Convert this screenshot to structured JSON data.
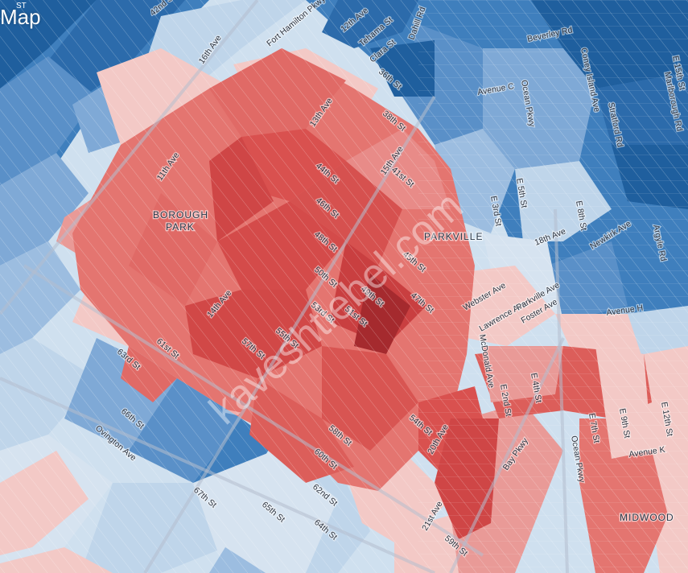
{
  "header": {
    "title": "Map",
    "corner_fragment": "ST"
  },
  "map": {
    "colors": {
      "dark_blue": "#1f5f9e",
      "blue": "#3f7fbd",
      "mid_blue": "#7fa9d6",
      "light_blue": "#bfd5ea",
      "pale_blue": "#d6e3f0",
      "pale_red": "#f3c9c6",
      "light_red": "#e99a97",
      "red": "#dc5e5a",
      "dark_red": "#c43c3b",
      "darkest_red": "#a52a2e"
    },
    "neighborhoods": {
      "borough_park_line1": "BOROUGH",
      "borough_park_line2": "PARK",
      "parkville": "PARKVILLE",
      "midwood": "MIDWOOD"
    },
    "streets": {
      "s42nd": "42nd St",
      "s16th_ave": "16th Ave",
      "fort_hamilton": "Fort Hamilton Pkwy",
      "s12th_ave": "12th Ave",
      "tehama": "Tehama St",
      "clara": "Clara St",
      "dahill": "Dahill Rd",
      "s36th": "36th St",
      "s38th": "38th St",
      "s13th_ave": "13th Ave",
      "s15th_ave": "15th Ave",
      "s41st": "41st St",
      "s11th_ave": "11th Ave",
      "s44th": "44th St",
      "s46th": "46th St",
      "s48th": "48th St",
      "s45th": "45th St",
      "s50th": "50th St",
      "s49th": "49th St",
      "s47th": "47th St",
      "s14th_ave": "14th Ave",
      "s53rd": "53rd St",
      "s51st": "51st St",
      "s61st": "61st St",
      "s57th": "57th St",
      "s55th": "55th St",
      "s63rd": "63rd St",
      "s66th": "66th St",
      "ovington": "Ovington Ave",
      "s67th": "67th St",
      "s65th": "65th St",
      "s62nd": "62nd St",
      "s64th": "64th St",
      "s60th": "60th St",
      "s58th": "58th St",
      "s54th": "54th St",
      "s20th_ave": "20th Ave",
      "s21st_ave": "21st Ave",
      "s59th": "59th St",
      "beverley": "Beverley Rd",
      "avenue_c": "Avenue C",
      "ocean_pkwy": "Ocean Pkwy",
      "coney_island": "Coney Island Ave",
      "e5th": "E 5th St",
      "e3rd": "E 3rd St",
      "e8th": "E 8th St",
      "s18th_ave": "18th Ave",
      "newkirk": "Newkirk Ave",
      "stratford": "Stratford Rd",
      "marlborough": "Marlborough Rd",
      "argyle": "Argyle Rd",
      "east_st": "E 15th St",
      "webster": "Webster Ave",
      "lawrence": "Lawrence Ave",
      "parkville_ave": "Parkville Ave",
      "foster": "Foster Ave",
      "avenue_h": "Avenue H",
      "mcdonald": "McDonald Ave",
      "e2nd": "E 2nd St",
      "e4th": "E 4th St",
      "e7th": "E 7th St",
      "e9th": "E 9th St",
      "e12th": "E 12th St",
      "avenue_k": "Avenue K",
      "bay_pkwy": "Bay Pkwy",
      "ocean_pkwy_2": "Ocean Pkwy"
    },
    "watermark": "kaveshtiebel.com"
  }
}
